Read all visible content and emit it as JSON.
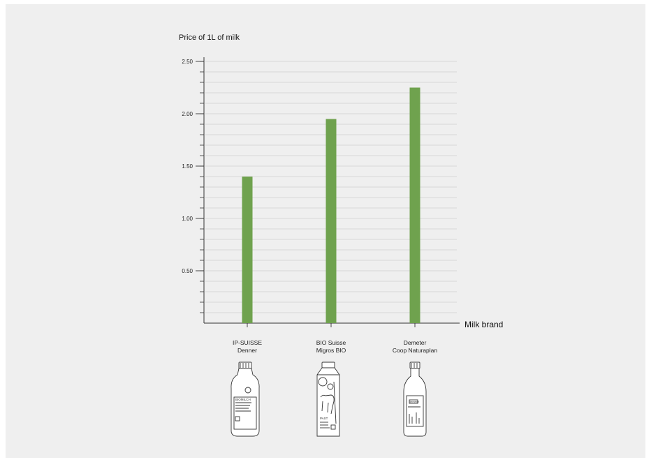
{
  "chart_data": {
    "type": "bar",
    "title": "Price of 1L of milk",
    "xlabel": "Milk brand",
    "ylabel": "",
    "categories": [
      "IP-SUISSE\nDenner",
      "BIO Suisse\nMigros BIO",
      "Demeter\nCoop Naturaplan"
    ],
    "values": [
      1.4,
      1.95,
      2.25
    ],
    "ylim": [
      0,
      2.5
    ],
    "yticks": [
      "0.50",
      "1.00",
      "1.50",
      "2.00",
      "2.50"
    ],
    "minor_step": 0.1,
    "grid": true,
    "bar_color": "#6fa24e",
    "background_color": "#efefef"
  },
  "bottles": [
    {
      "icon": "plastic-milk-bottle-icon",
      "label_text": "BIOMILCH"
    },
    {
      "icon": "milk-carton-icon",
      "label_text": "PAST"
    },
    {
      "icon": "glass-milk-bottle-icon",
      "label_text": "demeter"
    }
  ]
}
